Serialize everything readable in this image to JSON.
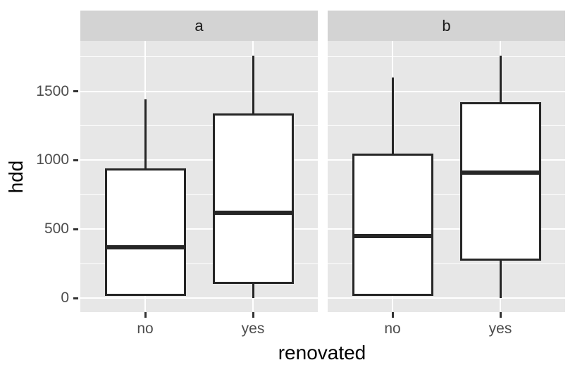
{
  "chart_data": {
    "type": "boxplot",
    "title": "",
    "x_label": "renovated",
    "y_label": "hdd",
    "categories": [
      "no",
      "yes"
    ],
    "facets": [
      {
        "label": "a",
        "boxes": [
          {
            "category": "no",
            "whisker_low": 15,
            "q1": 15,
            "median": 370,
            "q3": 940,
            "whisker_high": 1440
          },
          {
            "category": "yes",
            "whisker_low": 0,
            "q1": 100,
            "median": 620,
            "q3": 1340,
            "whisker_high": 1760
          }
        ]
      },
      {
        "label": "b",
        "boxes": [
          {
            "category": "no",
            "whisker_low": 15,
            "q1": 15,
            "median": 450,
            "q3": 1050,
            "whisker_high": 1600
          },
          {
            "category": "yes",
            "whisker_low": 0,
            "q1": 270,
            "median": 910,
            "q3": 1420,
            "whisker_high": 1760
          }
        ]
      }
    ],
    "y_axis": {
      "ticks": [
        0,
        500,
        1000,
        1500
      ],
      "minor_ticks": [
        250,
        750,
        1250,
        1750
      ],
      "range": [
        -100,
        1865
      ]
    },
    "legend": "none",
    "grid": "on",
    "style": "ggplot2-gray-theme",
    "colors": {
      "panel_background": "#E7E7E7",
      "strip_background": "#D3D3D3",
      "grid_line": "#FFFFFF",
      "box_stroke": "#262626",
      "box_fill": "#FFFFFF",
      "axis_text": "#4D4D4D",
      "axis_title_text": "#000000",
      "tick_mark": "#333333",
      "outer_background": "#FFFFFF"
    }
  }
}
